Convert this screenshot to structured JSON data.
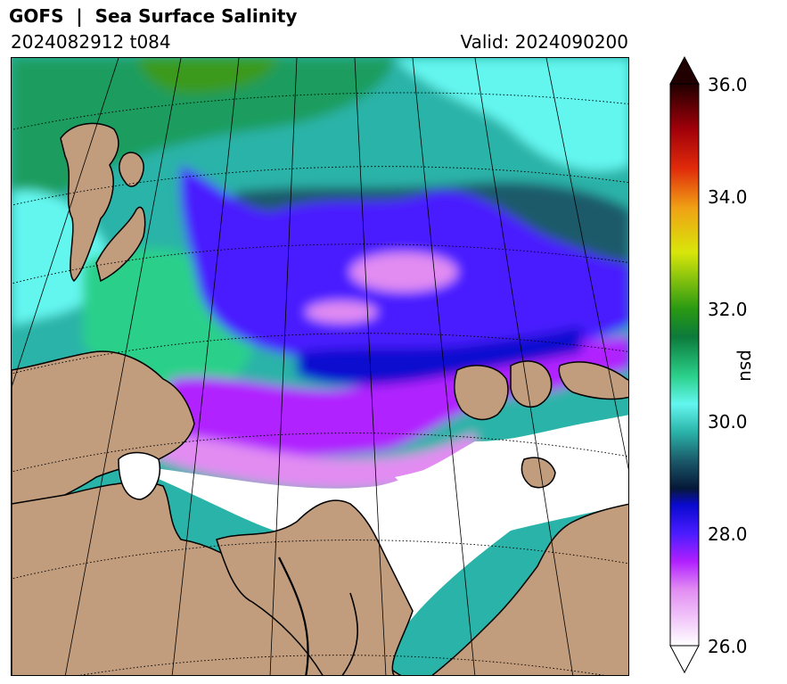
{
  "header": {
    "title": "GOFS  |  Sea Surface Salinity",
    "run": "2024082912 t084",
    "valid": "Valid: 2024090200"
  },
  "colorbar": {
    "label": "psu",
    "min": 26.0,
    "max": 36.0,
    "extend": "both",
    "ticks": [
      "36.0",
      "34.0",
      "32.0",
      "30.0",
      "28.0",
      "26.0"
    ],
    "stops": [
      {
        "value": 26.0,
        "color": "#ffffff"
      },
      {
        "value": 27.0,
        "color": "#e28cf2"
      },
      {
        "value": 27.5,
        "color": "#b020ff"
      },
      {
        "value": 28.0,
        "color": "#4a1cff"
      },
      {
        "value": 28.5,
        "color": "#0a0ad0"
      },
      {
        "value": 28.8,
        "color": "#061838"
      },
      {
        "value": 29.3,
        "color": "#1b5a6a"
      },
      {
        "value": 29.8,
        "color": "#2ab3a8"
      },
      {
        "value": 30.3,
        "color": "#63f6ef"
      },
      {
        "value": 30.8,
        "color": "#2bd08a"
      },
      {
        "value": 31.5,
        "color": "#0c7a3a"
      },
      {
        "value": 32.0,
        "color": "#2a9a12"
      },
      {
        "value": 33.0,
        "color": "#d8e60a"
      },
      {
        "value": 33.8,
        "color": "#f0a015"
      },
      {
        "value": 34.5,
        "color": "#e02a0a"
      },
      {
        "value": 35.2,
        "color": "#a0000a"
      },
      {
        "value": 36.0,
        "color": "#200000"
      }
    ]
  },
  "map_colors": {
    "land": "#c19c7d",
    "coast": "#000000",
    "ice_fresh": "#ffffff"
  }
}
